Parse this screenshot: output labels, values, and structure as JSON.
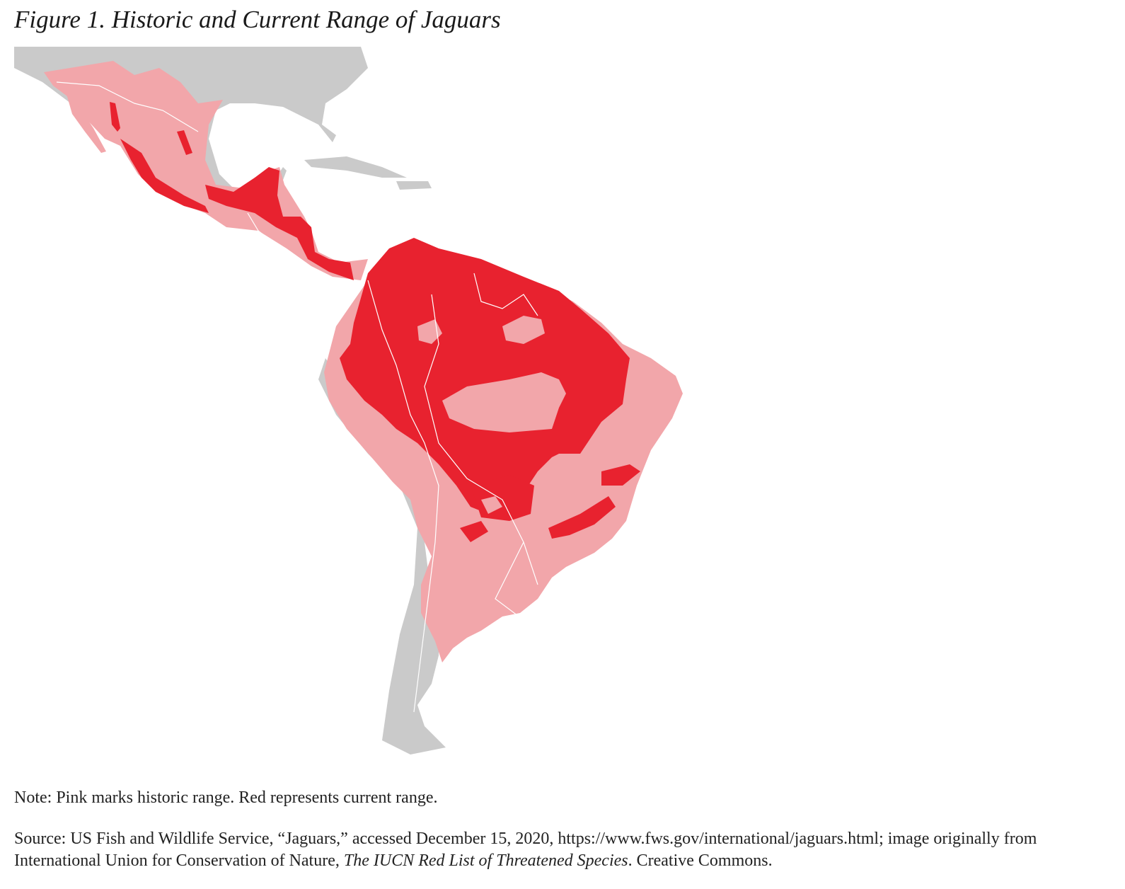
{
  "figure": {
    "title": "Figure 1. Historic and Current Range of Jaguars"
  },
  "map": {
    "colors": {
      "land": "#cacaca",
      "historic_range": "#f2a6aa",
      "current_range": "#e8222f",
      "border": "#ffffff",
      "background": "#ffffff"
    }
  },
  "note": "Note: Pink marks historic range. Red represents current range.",
  "source": {
    "part1": "Source: US Fish and Wildlife Service, “Jaguars,” accessed December 15, 2020, https://www.fws.gov/international/jaguars.html; image originally from International Union for Conservation of Nature, ",
    "publication": "The IUCN Red List of Threatened Species",
    "part2": ". Creative Commons."
  }
}
